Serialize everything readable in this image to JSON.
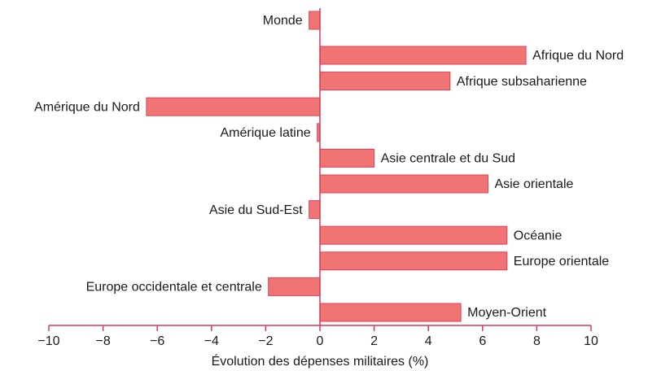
{
  "chart_data": {
    "type": "hbar",
    "categories": [
      "Monde",
      "Afrique du Nord",
      "Afrique subsaharienne",
      "Amérique du Nord",
      "Amérique latine",
      "Asie centrale et du Sud",
      "Asie orientale",
      "Asie du Sud-Est",
      "Océanie",
      "Europe orientale",
      "Europe occidentale et centrale",
      "Moyen-Orient"
    ],
    "values": [
      -0.4,
      7.6,
      4.8,
      -6.4,
      -0.1,
      2.0,
      6.2,
      -0.4,
      6.9,
      6.9,
      -1.9,
      5.2
    ],
    "color": "#f07474",
    "x_label": "Évolution des dépenses militaires  (%)",
    "xlim": [
      -10,
      10
    ],
    "xticks": [
      {
        "value": -10,
        "label": "−10"
      },
      {
        "value": -8,
        "label": "−8"
      },
      {
        "value": -6,
        "label": "−6"
      },
      {
        "value": -4,
        "label": "−4"
      },
      {
        "value": -2,
        "label": "−2"
      },
      0,
      2,
      4,
      6,
      8,
      10
    ]
  }
}
